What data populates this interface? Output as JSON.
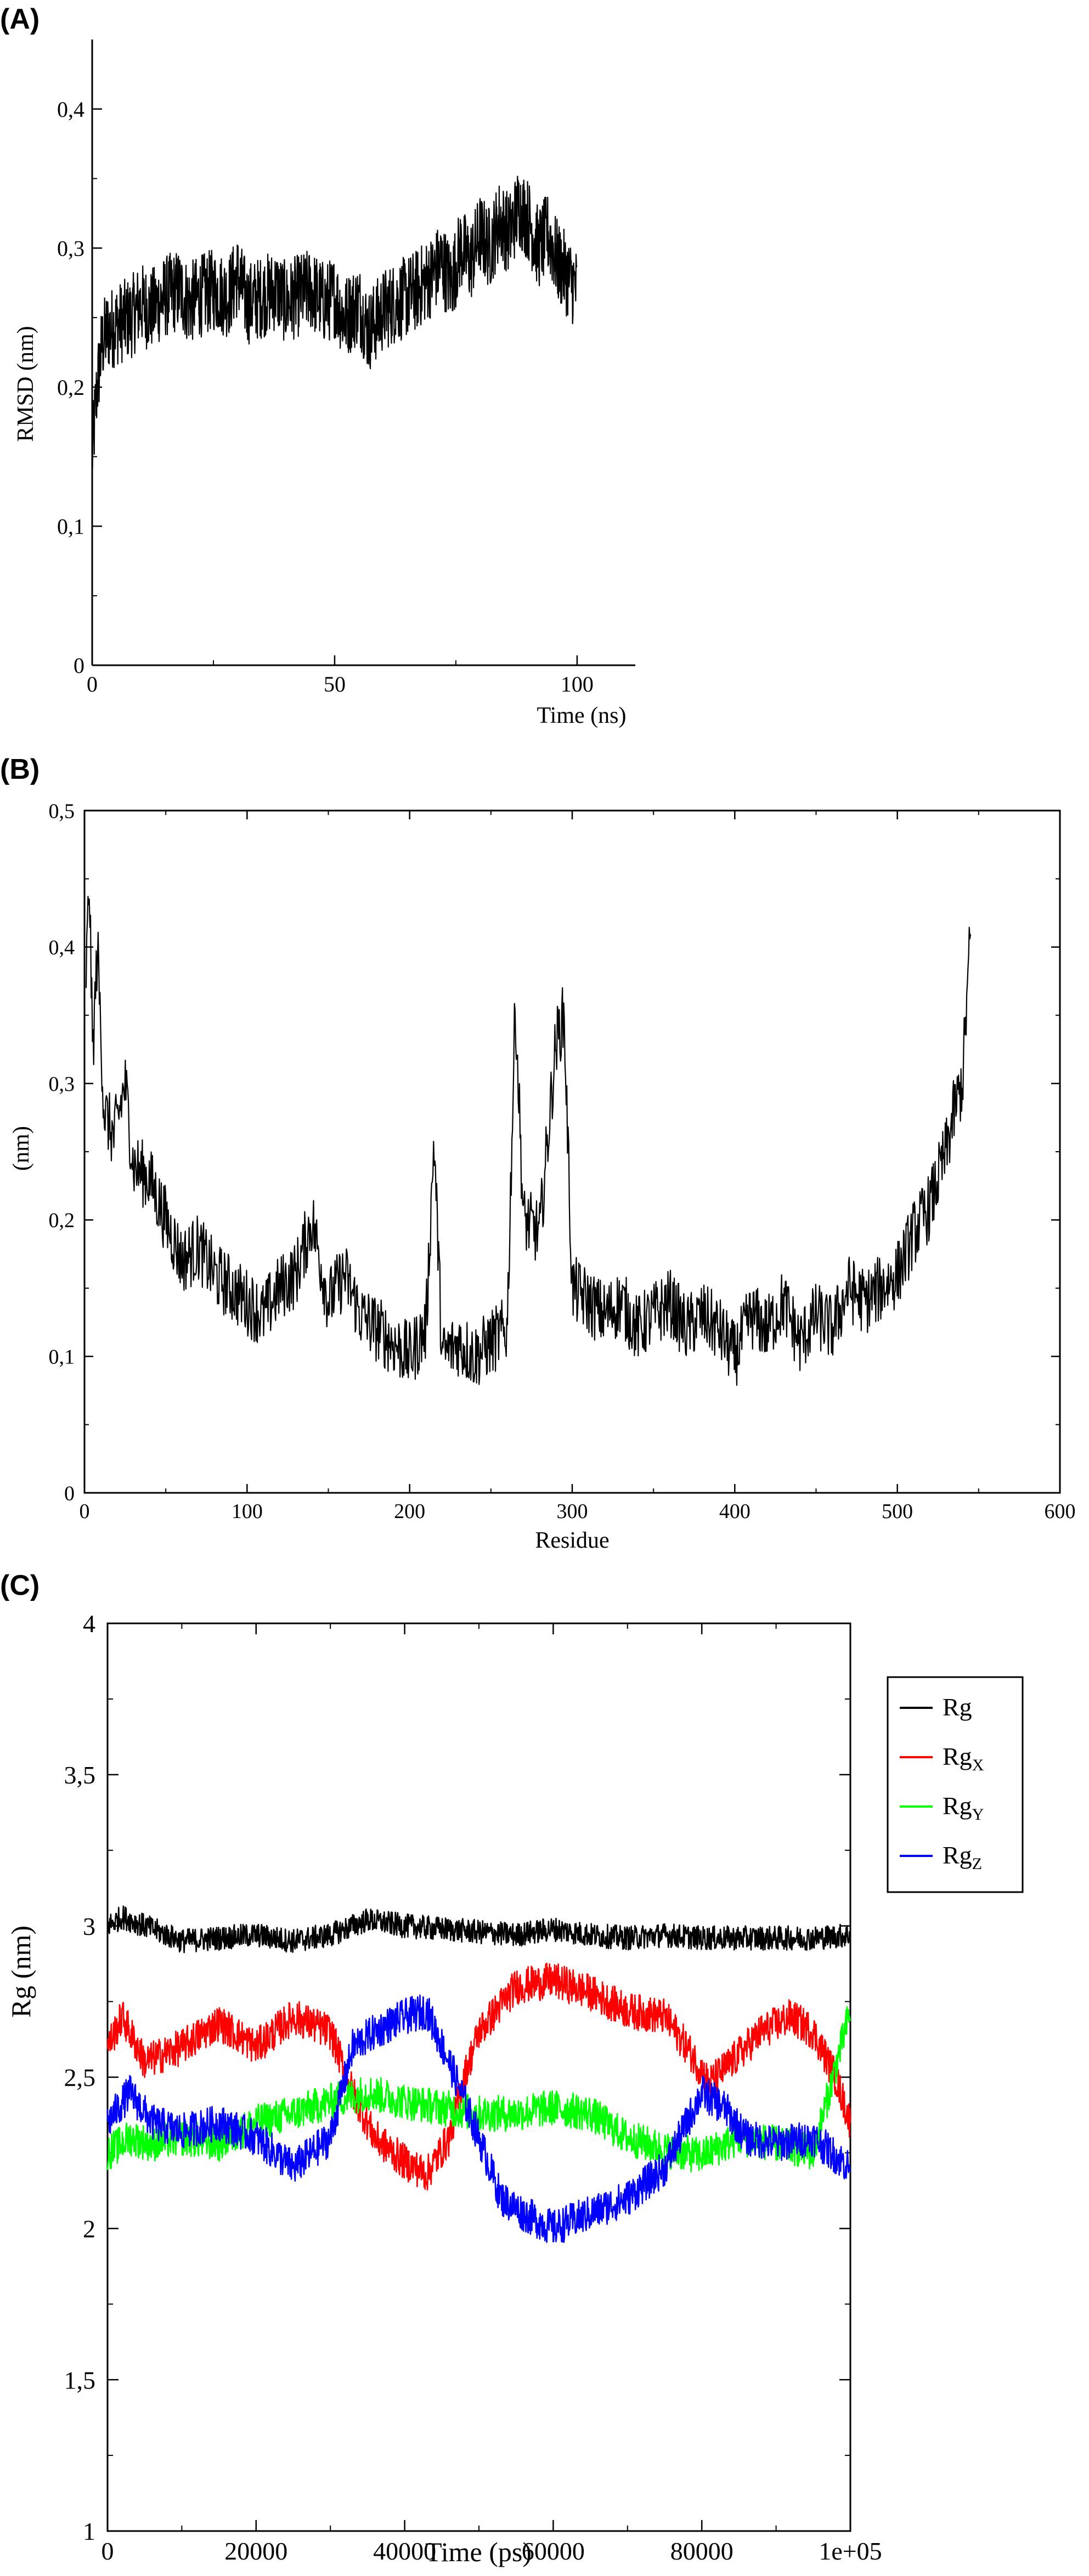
{
  "chart_data": [
    {
      "id": "A",
      "type": "line",
      "panel_label": "(A)",
      "xlabel": "Time (ns)",
      "ylabel": "RMSD (nm)",
      "xlim": [
        0,
        112
      ],
      "ylim": [
        0,
        0.45
      ],
      "xticks": [
        {
          "value": 0,
          "label": "0"
        },
        {
          "value": 50,
          "label": "50"
        },
        {
          "value": 100,
          "label": "100"
        }
      ],
      "yticks": [
        {
          "value": 0,
          "label": "0"
        },
        {
          "value": 0.1,
          "label": "0,1"
        },
        {
          "value": 0.2,
          "label": "0,2"
        },
        {
          "value": 0.3,
          "label": "0,3"
        },
        {
          "value": 0.4,
          "label": "0,4"
        }
      ],
      "series": [
        {
          "color": "#000000",
          "x": [
            0,
            1,
            2,
            3,
            5,
            8,
            10,
            12,
            15,
            18,
            20,
            22,
            25,
            28,
            30,
            32,
            35,
            38,
            40,
            42,
            45,
            48,
            50,
            52,
            55,
            57,
            60,
            62,
            65,
            67,
            70,
            72,
            74,
            76,
            78,
            80,
            82,
            84,
            86,
            88,
            90,
            92,
            94,
            96,
            98,
            100
          ],
          "y": [
            0.15,
            0.2,
            0.23,
            0.24,
            0.245,
            0.25,
            0.26,
            0.255,
            0.265,
            0.27,
            0.26,
            0.265,
            0.27,
            0.265,
            0.28,
            0.26,
            0.265,
            0.27,
            0.26,
            0.265,
            0.27,
            0.26,
            0.265,
            0.25,
            0.26,
            0.24,
            0.255,
            0.26,
            0.265,
            0.27,
            0.28,
            0.29,
            0.275,
            0.3,
            0.29,
            0.31,
            0.3,
            0.32,
            0.31,
            0.33,
            0.32,
            0.3,
            0.31,
            0.29,
            0.28,
            0.27
          ],
          "noise": 0.03
        }
      ]
    },
    {
      "id": "B",
      "type": "line",
      "panel_label": "(B)",
      "xlabel": "Residue",
      "ylabel": "(nm)",
      "xlim": [
        0,
        600
      ],
      "ylim": [
        0,
        0.5
      ],
      "xticks": [
        {
          "value": 0,
          "label": "0"
        },
        {
          "value": 100,
          "label": "100"
        },
        {
          "value": 200,
          "label": "200"
        },
        {
          "value": 300,
          "label": "300"
        },
        {
          "value": 400,
          "label": "400"
        },
        {
          "value": 500,
          "label": "500"
        },
        {
          "value": 600,
          "label": "600"
        }
      ],
      "yticks": [
        {
          "value": 0,
          "label": "0"
        },
        {
          "value": 0.1,
          "label": "0,1"
        },
        {
          "value": 0.2,
          "label": "0,2"
        },
        {
          "value": 0.3,
          "label": "0,3"
        },
        {
          "value": 0.4,
          "label": "0,4"
        },
        {
          "value": 0.5,
          "label": "0,5"
        }
      ],
      "series": [
        {
          "color": "#000000",
          "x": [
            1,
            3,
            5,
            8,
            12,
            18,
            25,
            30,
            40,
            50,
            60,
            70,
            80,
            90,
            100,
            110,
            120,
            130,
            140,
            150,
            160,
            170,
            180,
            190,
            200,
            210,
            215,
            220,
            230,
            240,
            250,
            260,
            265,
            270,
            280,
            290,
            295,
            300,
            310,
            320,
            330,
            340,
            350,
            360,
            370,
            380,
            390,
            400,
            410,
            420,
            430,
            440,
            450,
            460,
            470,
            480,
            490,
            500,
            510,
            520,
            530,
            535,
            540,
            545
          ],
          "y": [
            0.38,
            0.45,
            0.32,
            0.4,
            0.28,
            0.26,
            0.3,
            0.24,
            0.23,
            0.2,
            0.17,
            0.18,
            0.16,
            0.15,
            0.14,
            0.13,
            0.15,
            0.16,
            0.2,
            0.14,
            0.16,
            0.13,
            0.12,
            0.11,
            0.1,
            0.12,
            0.26,
            0.1,
            0.11,
            0.1,
            0.11,
            0.12,
            0.36,
            0.2,
            0.19,
            0.33,
            0.35,
            0.15,
            0.14,
            0.13,
            0.14,
            0.12,
            0.13,
            0.14,
            0.12,
            0.13,
            0.12,
            0.1,
            0.13,
            0.12,
            0.14,
            0.11,
            0.13,
            0.12,
            0.15,
            0.14,
            0.15,
            0.16,
            0.19,
            0.21,
            0.25,
            0.28,
            0.3,
            0.41
          ],
          "noise": 0.025
        }
      ]
    },
    {
      "id": "C",
      "type": "line",
      "panel_label": "(C)",
      "xlabel": "Time (ps)",
      "ylabel": "Rg (nm)",
      "xlim": [
        0,
        100000
      ],
      "ylim": [
        1,
        4
      ],
      "xticks": [
        {
          "value": 0,
          "label": "0"
        },
        {
          "value": 20000,
          "label": "20000"
        },
        {
          "value": 40000,
          "label": "40000"
        },
        {
          "value": 60000,
          "label": "60000"
        },
        {
          "value": 80000,
          "label": "80000"
        },
        {
          "value": 100000,
          "label": "1e+05"
        }
      ],
      "yticks": [
        {
          "value": 1,
          "label": "1"
        },
        {
          "value": 1.5,
          "label": "1,5"
        },
        {
          "value": 2,
          "label": "2"
        },
        {
          "value": 2.5,
          "label": "2,5"
        },
        {
          "value": 3,
          "label": "3"
        },
        {
          "value": 3.5,
          "label": "3,5"
        },
        {
          "value": 4,
          "label": "4"
        }
      ],
      "legend": "right",
      "series": [
        {
          "name": "Rg",
          "sub": "",
          "color": "#000000",
          "x": [
            0,
            2000,
            5000,
            10000,
            15000,
            20000,
            25000,
            30000,
            35000,
            40000,
            45000,
            50000,
            55000,
            60000,
            65000,
            70000,
            75000,
            80000,
            85000,
            90000,
            95000,
            100000
          ],
          "y": [
            3.0,
            3.03,
            3.0,
            2.95,
            2.96,
            2.97,
            2.95,
            2.97,
            3.02,
            3.0,
            2.99,
            2.98,
            2.97,
            2.99,
            2.97,
            2.96,
            2.97,
            2.96,
            2.96,
            2.96,
            2.96,
            2.97
          ],
          "noise": 0.04
        },
        {
          "name": "Rg",
          "sub": "X",
          "color": "#ff0000",
          "x": [
            0,
            2000,
            5000,
            10000,
            15000,
            20000,
            25000,
            30000,
            33000,
            36000,
            40000,
            43000,
            46000,
            48000,
            50000,
            55000,
            60000,
            65000,
            70000,
            75000,
            78000,
            81000,
            84000,
            88000,
            92000,
            95000,
            98000,
            100000
          ],
          "y": [
            2.6,
            2.7,
            2.55,
            2.6,
            2.68,
            2.6,
            2.7,
            2.65,
            2.45,
            2.3,
            2.22,
            2.18,
            2.3,
            2.5,
            2.65,
            2.8,
            2.82,
            2.78,
            2.72,
            2.7,
            2.6,
            2.48,
            2.55,
            2.65,
            2.7,
            2.65,
            2.5,
            2.35
          ],
          "noise": 0.06
        },
        {
          "name": "Rg",
          "sub": "Y",
          "color": "#00ff00",
          "x": [
            0,
            3000,
            6000,
            10000,
            15000,
            20000,
            25000,
            30000,
            35000,
            40000,
            45000,
            50000,
            55000,
            60000,
            65000,
            70000,
            75000,
            80000,
            85000,
            90000,
            95000,
            100000
          ],
          "y": [
            2.25,
            2.3,
            2.28,
            2.3,
            2.28,
            2.35,
            2.38,
            2.42,
            2.45,
            2.42,
            2.4,
            2.38,
            2.38,
            2.4,
            2.38,
            2.3,
            2.26,
            2.24,
            2.3,
            2.28,
            2.25,
            2.72
          ],
          "noise": 0.06
        },
        {
          "name": "Rg",
          "sub": "Z",
          "color": "#0000ff",
          "x": [
            0,
            3000,
            6000,
            10000,
            15000,
            20000,
            25000,
            30000,
            33000,
            36000,
            40000,
            43000,
            46000,
            50000,
            53000,
            56000,
            60000,
            65000,
            70000,
            75000,
            80000,
            83000,
            86000,
            90000,
            95000,
            100000
          ],
          "y": [
            2.35,
            2.45,
            2.35,
            2.32,
            2.35,
            2.3,
            2.2,
            2.3,
            2.6,
            2.65,
            2.7,
            2.72,
            2.55,
            2.3,
            2.1,
            2.05,
            2.0,
            2.05,
            2.1,
            2.2,
            2.45,
            2.4,
            2.3,
            2.28,
            2.3,
            2.2
          ],
          "noise": 0.06
        }
      ]
    }
  ]
}
